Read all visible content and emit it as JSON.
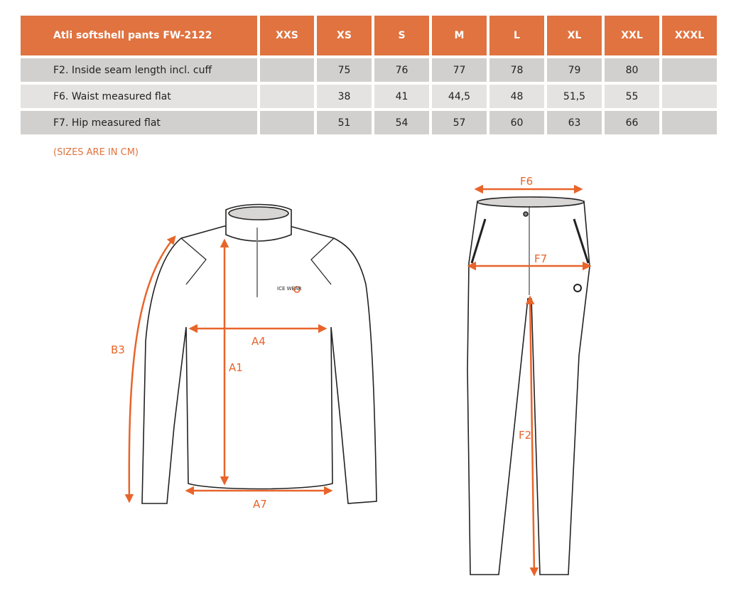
{
  "table": {
    "title": "Atli softshell pants FW-2122",
    "sizes": [
      "XXS",
      "XS",
      "S",
      "M",
      "L",
      "XL",
      "XXL",
      "XXXL"
    ],
    "rows": [
      {
        "label": "F2. Inside seam length incl. cuff",
        "values": [
          "",
          "75",
          "76",
          "77",
          "78",
          "79",
          "80",
          ""
        ]
      },
      {
        "label": "F6. Waist measured flat",
        "values": [
          "",
          "38",
          "41",
          "44,5",
          "48",
          "51,5",
          "55",
          ""
        ]
      },
      {
        "label": "F7. Hip measured flat",
        "values": [
          "",
          "51",
          "54",
          "57",
          "60",
          "63",
          "66",
          ""
        ]
      }
    ]
  },
  "note": "(SIZES ARE IN CM)",
  "diagram": {
    "jacket_labels": {
      "b3": "B3",
      "a4": "A4",
      "a1": "A1",
      "a7": "A7"
    },
    "pants_labels": {
      "f6": "F6",
      "f7": "F7",
      "f2": "F2"
    },
    "logo": "ICE WEAR",
    "accent_color": "#e8642a",
    "header_color": "#e07340"
  }
}
